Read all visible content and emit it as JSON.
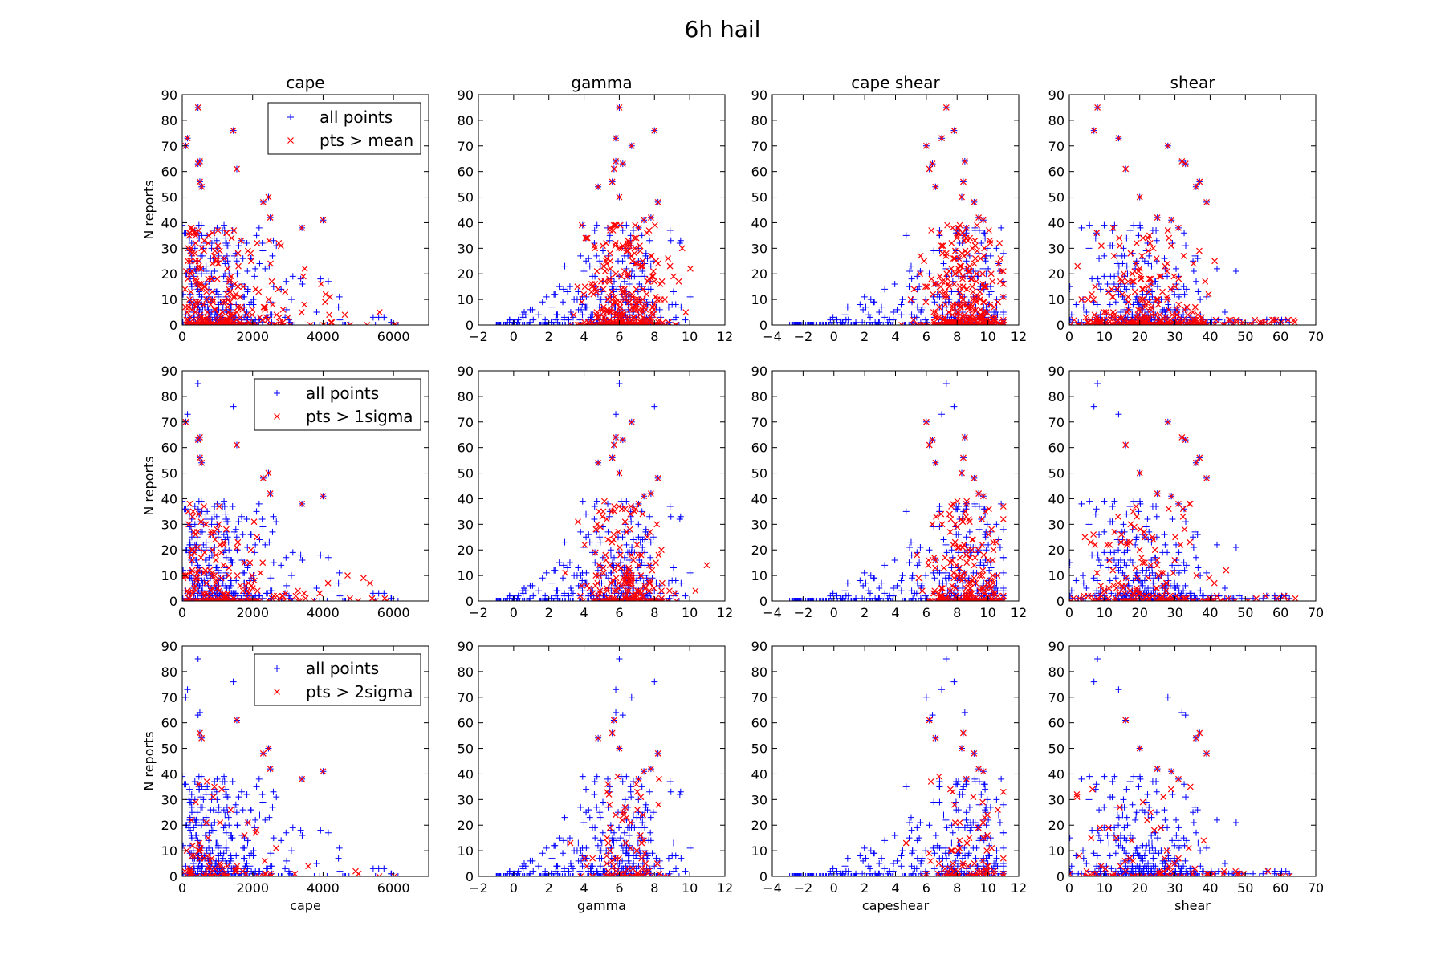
{
  "figure": {
    "title": "6h hail",
    "ylabel": "N reports",
    "colors": {
      "all_points": "#0000ff",
      "selected_points": "#ff0000"
    },
    "marker_all": "plus",
    "marker_selected": "x"
  },
  "columns": [
    {
      "key": "cape",
      "title": "cape",
      "xlabel": "cape",
      "xlim": [
        0,
        7000
      ],
      "xticks": [
        0,
        2000,
        4000,
        6000
      ]
    },
    {
      "key": "gamma",
      "title": "gamma",
      "xlabel": "gamma",
      "xlim": [
        -2,
        12
      ],
      "xticks": [
        -2,
        0,
        2,
        4,
        6,
        8,
        10,
        12
      ]
    },
    {
      "key": "capeshear",
      "title": "cape shear",
      "xlabel": "capeshear",
      "xlim": [
        -4,
        12
      ],
      "xticks": [
        -4,
        -2,
        0,
        2,
        4,
        6,
        8,
        10,
        12
      ]
    },
    {
      "key": "shear",
      "title": "shear",
      "xlabel": "shear",
      "xlim": [
        0,
        70
      ],
      "xticks": [
        0,
        10,
        20,
        30,
        40,
        50,
        60,
        70
      ]
    }
  ],
  "rows": [
    {
      "legend": [
        "all points",
        "pts > mean"
      ]
    },
    {
      "legend": [
        "all points",
        "pts > 1sigma"
      ]
    },
    {
      "legend": [
        "all points",
        "pts > 2sigma"
      ]
    }
  ],
  "yaxis": {
    "ylim": [
      0,
      90
    ],
    "yticks": [
      0,
      10,
      20,
      30,
      40,
      50,
      60,
      70,
      80,
      90
    ]
  },
  "chart_data": {
    "type": "scatter",
    "title": "6h hail",
    "ylabel": "N reports",
    "ylim": [
      0,
      90
    ],
    "grid": false,
    "legend_placement": "upper right of first column",
    "distribution_summary": {
      "cape": {
        "x_range": [
          0,
          6200
        ],
        "y_peak_values": [
          85,
          76,
          73,
          64,
          61,
          56,
          50,
          48,
          42,
          41
        ],
        "note": "counts decrease with cape"
      },
      "gamma": {
        "x_range": [
          -1,
          10.5
        ],
        "peak_x": 6,
        "y_peak_values": [
          85,
          76,
          73,
          70,
          64,
          63
        ]
      },
      "capeshear": {
        "x_range": [
          -3,
          11
        ],
        "peak_x": 7.5,
        "y_peak_values": [
          85,
          76,
          73,
          70,
          64,
          63
        ]
      },
      "shear": {
        "x_range": [
          0,
          65
        ],
        "peak_x": 20,
        "y_peak_values": [
          85,
          76,
          73,
          70,
          64,
          63
        ]
      }
    },
    "highlighted_extremes": [
      {
        "y": 85,
        "cape": 450,
        "gamma": 6.0,
        "capeshear": 7.3,
        "shear": 8
      },
      {
        "y": 76,
        "cape": 1450,
        "gamma": 8.0,
        "capeshear": 7.8,
        "shear": 7
      },
      {
        "y": 73,
        "cape": 150,
        "gamma": 5.8,
        "capeshear": 7.0,
        "shear": 14
      },
      {
        "y": 70,
        "cape": 100,
        "gamma": 6.7,
        "capeshear": 6.0,
        "shear": 28
      },
      {
        "y": 64,
        "cape": 500,
        "gamma": 5.8,
        "capeshear": 8.5,
        "shear": 32
      },
      {
        "y": 63,
        "cape": 450,
        "gamma": 6.2,
        "capeshear": 6.4,
        "shear": 33
      },
      {
        "y": 61,
        "cape": 1550,
        "gamma": 5.7,
        "capeshear": 6.2,
        "shear": 16
      },
      {
        "y": 56,
        "cape": 500,
        "gamma": 5.6,
        "capeshear": 8.4,
        "shear": 37
      },
      {
        "y": 54,
        "cape": 550,
        "gamma": 4.8,
        "capeshear": 6.6,
        "shear": 36
      },
      {
        "y": 50,
        "cape": 2450,
        "gamma": 6.0,
        "capeshear": 8.3,
        "shear": 20
      },
      {
        "y": 48,
        "cape": 2300,
        "gamma": 8.2,
        "capeshear": 9.1,
        "shear": 39
      },
      {
        "y": 42,
        "cape": 2500,
        "gamma": 7.8,
        "capeshear": 9.4,
        "shear": 25
      },
      {
        "y": 41,
        "cape": 4000,
        "gamma": 7.4,
        "capeshear": 9.7,
        "shear": 29
      },
      {
        "y": 38,
        "cape": 3400,
        "gamma": 7.1,
        "capeshear": 8.6,
        "shear": 31
      }
    ]
  }
}
